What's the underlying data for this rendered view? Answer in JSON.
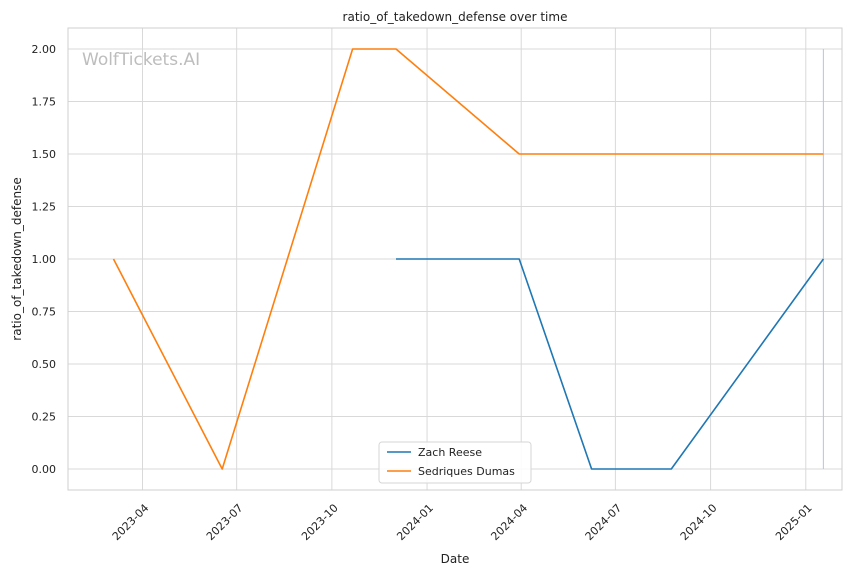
{
  "watermark": "WolfTickets.AI",
  "chart_data": {
    "type": "line",
    "title": "ratio_of_takedown_defense over time",
    "xlabel": "Date",
    "ylabel": "ratio_of_takedown_defense",
    "xlim": [
      "2023-01-19",
      "2025-02-05"
    ],
    "ylim": [
      -0.1,
      2.1
    ],
    "x_ticks": [
      "2023-04-01",
      "2023-07-01",
      "2023-10-01",
      "2024-01-01",
      "2024-04-01",
      "2024-07-01",
      "2024-10-01",
      "2025-01-01"
    ],
    "x_tick_labels": [
      "2023-04",
      "2023-07",
      "2023-10",
      "2024-01",
      "2024-04",
      "2024-07",
      "2024-10",
      "2025-01"
    ],
    "y_ticks": [
      0.0,
      0.25,
      0.5,
      0.75,
      1.0,
      1.25,
      1.5,
      1.75,
      2.0
    ],
    "y_tick_labels": [
      "0.00",
      "0.25",
      "0.50",
      "0.75",
      "1.00",
      "1.25",
      "1.50",
      "1.75",
      "2.00"
    ],
    "grid": true,
    "legend_position": "lower-center",
    "series": [
      {
        "name": "Zach Reese",
        "color": "#1f77b4",
        "points": [
          {
            "x": "2023-12-02",
            "y": 1.0
          },
          {
            "x": "2024-03-30",
            "y": 1.0
          },
          {
            "x": "2024-06-08",
            "y": 0.0
          },
          {
            "x": "2024-08-24",
            "y": 0.0
          },
          {
            "x": "2025-01-18",
            "y": 1.0
          }
        ]
      },
      {
        "name": "Sedriques Dumas",
        "color": "#ff7f0e",
        "points": [
          {
            "x": "2023-03-04",
            "y": 1.0
          },
          {
            "x": "2023-06-17",
            "y": 0.0
          },
          {
            "x": "2023-10-21",
            "y": 2.0
          },
          {
            "x": "2023-12-02",
            "y": 2.0
          },
          {
            "x": "2024-03-30",
            "y": 1.5
          },
          {
            "x": "2025-01-18",
            "y": 1.5
          }
        ]
      }
    ],
    "marker_line": {
      "x": "2025-01-18",
      "y_range": [
        0.0,
        2.0
      ],
      "color": "#a6cbe3"
    }
  }
}
